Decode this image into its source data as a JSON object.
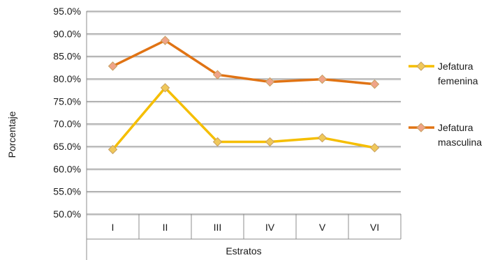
{
  "chart_data": {
    "type": "line",
    "title": "",
    "xlabel": "Estratos",
    "ylabel": "Porcentaje",
    "categories": [
      "I",
      "II",
      "III",
      "IV",
      "V",
      "VI"
    ],
    "ylim": [
      50,
      95
    ],
    "ytick_step": 5,
    "ytick_labels": [
      "50.0%",
      "55.0%",
      "60.0%",
      "65.0%",
      "70.0%",
      "75.0%",
      "80.0%",
      "85.0%",
      "90.0%",
      "95.0%"
    ],
    "grid": true,
    "legend_position": "right",
    "series": [
      {
        "name": "Jefatura femenina",
        "name_lines": [
          "Jefatura",
          "femenina"
        ],
        "color": "#f5be00",
        "marker_color": "#f0c85a",
        "values": [
          64.3,
          78.0,
          66.0,
          66.0,
          66.9,
          64.7
        ]
      },
      {
        "name": "Jefatura masculina",
        "name_lines": [
          "Jefatura",
          "masculina"
        ],
        "color": "#e07314",
        "marker_color": "#f0a488",
        "values": [
          82.8,
          88.5,
          80.9,
          79.3,
          79.9,
          78.8
        ]
      }
    ]
  }
}
